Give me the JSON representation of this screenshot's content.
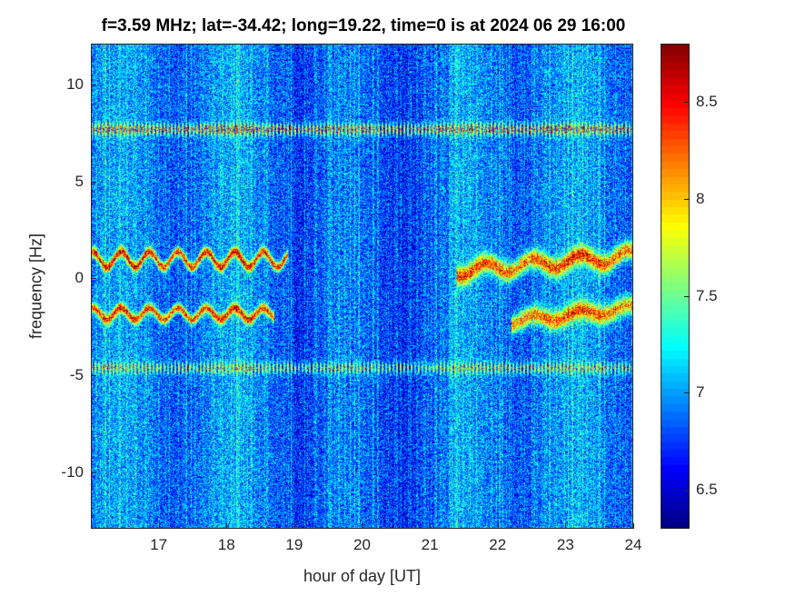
{
  "chart_data": {
    "type": "heatmap",
    "title": "f=3.59 MHz;  lat=-34.42; long=19.22, time=0 is at 2024 06 29 16:00",
    "xlabel": "hour of day [UT]",
    "ylabel": "frequency [Hz]",
    "xlim": [
      16,
      24
    ],
    "ylim": [
      -12.9,
      12.1
    ],
    "xticks": [
      "17",
      "18",
      "19",
      "20",
      "21",
      "22",
      "23",
      "24"
    ],
    "yticks": [
      "10",
      "5",
      "0",
      "-5",
      "-10"
    ],
    "colorbar": {
      "colormap": "jet",
      "clim": [
        6.3,
        8.8
      ],
      "ticks": [
        "8.5",
        "8",
        "7.5",
        "7",
        "6.5"
      ]
    },
    "background_level": 6.9,
    "features": [
      {
        "name": "band-upper",
        "freq": 7.7,
        "t": [
          16,
          24
        ],
        "level": 8.3
      },
      {
        "name": "band-lower",
        "freq": -4.6,
        "t": [
          16,
          24
        ],
        "level": 7.9
      },
      {
        "name": "ridge-pos-early",
        "t": [
          16,
          18.9
        ],
        "freq": 1.0,
        "wiggle": 0.4,
        "level": 8.7
      },
      {
        "name": "ridge-neg-early",
        "t": [
          16,
          18.7
        ],
        "freq": -1.8,
        "wiggle": 0.3,
        "level": 8.6
      },
      {
        "name": "ridge-pos-late",
        "t": [
          21.4,
          24
        ],
        "freq_start": 0.4,
        "freq_end": 1.2,
        "wiggle": 0.3,
        "level": 8.5
      },
      {
        "name": "ridge-neg-late",
        "t": [
          22.2,
          24
        ],
        "freq_start": -2.2,
        "freq_end": -1.5,
        "wiggle": 0.2,
        "level": 8.4
      }
    ]
  }
}
